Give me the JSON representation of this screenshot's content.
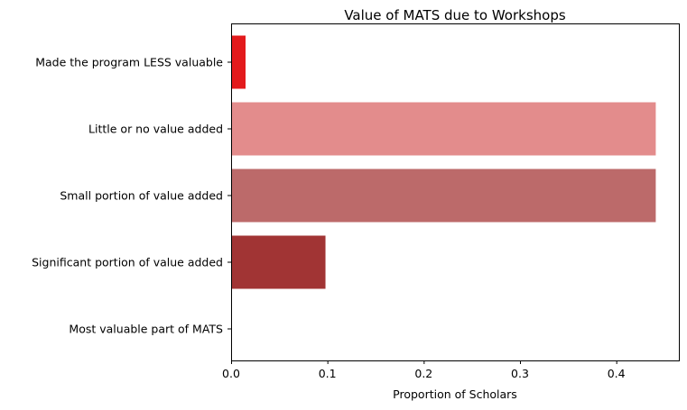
{
  "chart_data": {
    "type": "bar",
    "orientation": "horizontal",
    "title": "Value of MATS due to Workshops",
    "xlabel": "Proportion of Scholars",
    "ylabel": "",
    "categories": [
      "Made the program LESS valuable",
      "Little or no value added",
      "Small portion of value added",
      "Significant portion of value added",
      "Most valuable part of MATS"
    ],
    "values": [
      0.015,
      0.441,
      0.441,
      0.098,
      0.0
    ],
    "colors": [
      "#e31a1c",
      "#e38c8c",
      "#bc6a6a",
      "#a13434",
      "#7a1c1c"
    ],
    "xlim": [
      0,
      0.465
    ],
    "xticks": [
      0.0,
      0.1,
      0.2,
      0.3,
      0.4
    ],
    "xtick_labels": [
      "0.0",
      "0.1",
      "0.2",
      "0.3",
      "0.4"
    ],
    "grid": false,
    "legend": "none"
  }
}
